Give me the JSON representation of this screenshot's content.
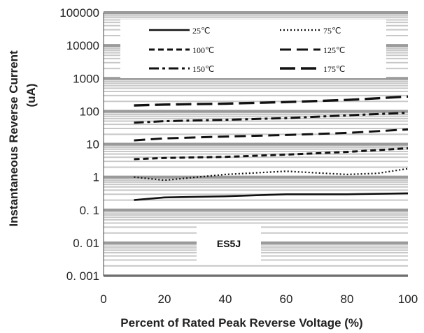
{
  "chart_data": {
    "type": "line",
    "title": "",
    "xlabel": "Percent of Rated Peak  Reverse Voltage (%)",
    "ylabel": "Instantaneous Reverse Current",
    "ylabel_unit": "(uA)",
    "xlim": [
      0,
      100
    ],
    "ylim": [
      0.001,
      100000
    ],
    "yscale": "log",
    "grid": true,
    "x_ticks": [
      "0",
      "20",
      "40",
      "60",
      "80",
      "100"
    ],
    "y_ticks": [
      "100000",
      "10000",
      "1000",
      "100",
      "10",
      "1",
      "0. 1",
      "0. 01",
      "0. 001"
    ],
    "legend_position": "top",
    "annotation": "ES5J",
    "series": [
      {
        "name": "25℃",
        "style": "solid",
        "x": [
          10,
          20,
          40,
          60,
          80,
          100
        ],
        "y": [
          0.2,
          0.24,
          0.26,
          0.3,
          0.3,
          0.32
        ]
      },
      {
        "name": "75℃",
        "style": "dotted",
        "x": [
          10,
          20,
          40,
          60,
          80,
          90,
          100
        ],
        "y": [
          1.0,
          0.8,
          1.2,
          1.5,
          1.2,
          1.3,
          1.8
        ]
      },
      {
        "name": "100℃",
        "style": "short-dash",
        "x": [
          10,
          20,
          40,
          60,
          80,
          100
        ],
        "y": [
          3.5,
          3.8,
          4.1,
          4.8,
          5.8,
          7.5
        ]
      },
      {
        "name": "125℃",
        "style": "long-dash",
        "x": [
          10,
          20,
          40,
          60,
          80,
          100
        ],
        "y": [
          13,
          15,
          17,
          19,
          22,
          28
        ]
      },
      {
        "name": "150℃",
        "style": "dash-dot",
        "x": [
          10,
          20,
          40,
          60,
          80,
          100
        ],
        "y": [
          45,
          50,
          55,
          62,
          75,
          90
        ]
      },
      {
        "name": "175℃",
        "style": "long-dash-heavy",
        "x": [
          10,
          20,
          40,
          60,
          80,
          100
        ],
        "y": [
          150,
          160,
          170,
          190,
          220,
          280
        ]
      }
    ]
  }
}
